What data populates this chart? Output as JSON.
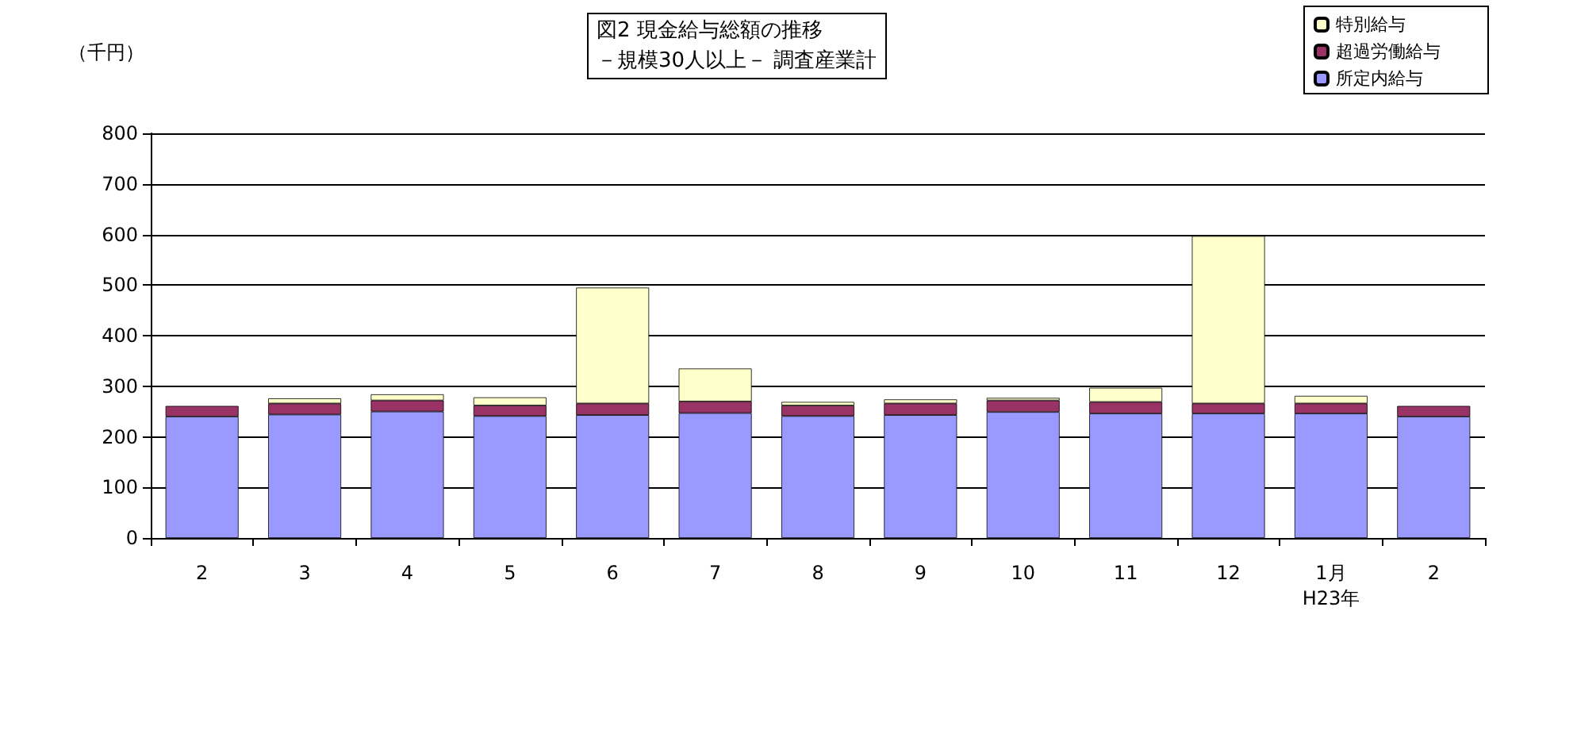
{
  "chart_data": {
    "type": "bar",
    "title": "図2 現金給与総額の推移",
    "subtitle": "－規模30人以上－ 調査産業計",
    "ylabel": "（千円）",
    "stacked": true,
    "grid": "y",
    "legend": "top right",
    "categories": [
      "2",
      "3",
      "4",
      "5",
      "6",
      "7",
      "8",
      "9",
      "10",
      "11",
      "12",
      "1月\nH23年",
      "2"
    ],
    "series": [
      {
        "name": "所定内給与",
        "color": "#9999ff",
        "values": [
          240,
          244,
          250,
          241,
          243,
          247,
          241,
          243,
          249,
          246,
          246,
          246,
          240
        ]
      },
      {
        "name": "超過労働給与",
        "color": "#993366",
        "values": [
          21,
          22,
          22,
          21,
          23,
          23,
          21,
          23,
          23,
          23,
          20,
          20,
          21
        ]
      },
      {
        "name": "特別給与",
        "color": "#ffffcc",
        "values": [
          null,
          10,
          12,
          16,
          229,
          65,
          7,
          8,
          5,
          28,
          331,
          15,
          null
        ]
      }
    ],
    "ylim": [
      0,
      800
    ],
    "yticks": [
      0,
      100,
      200,
      300,
      400,
      500,
      600,
      700,
      800
    ]
  }
}
